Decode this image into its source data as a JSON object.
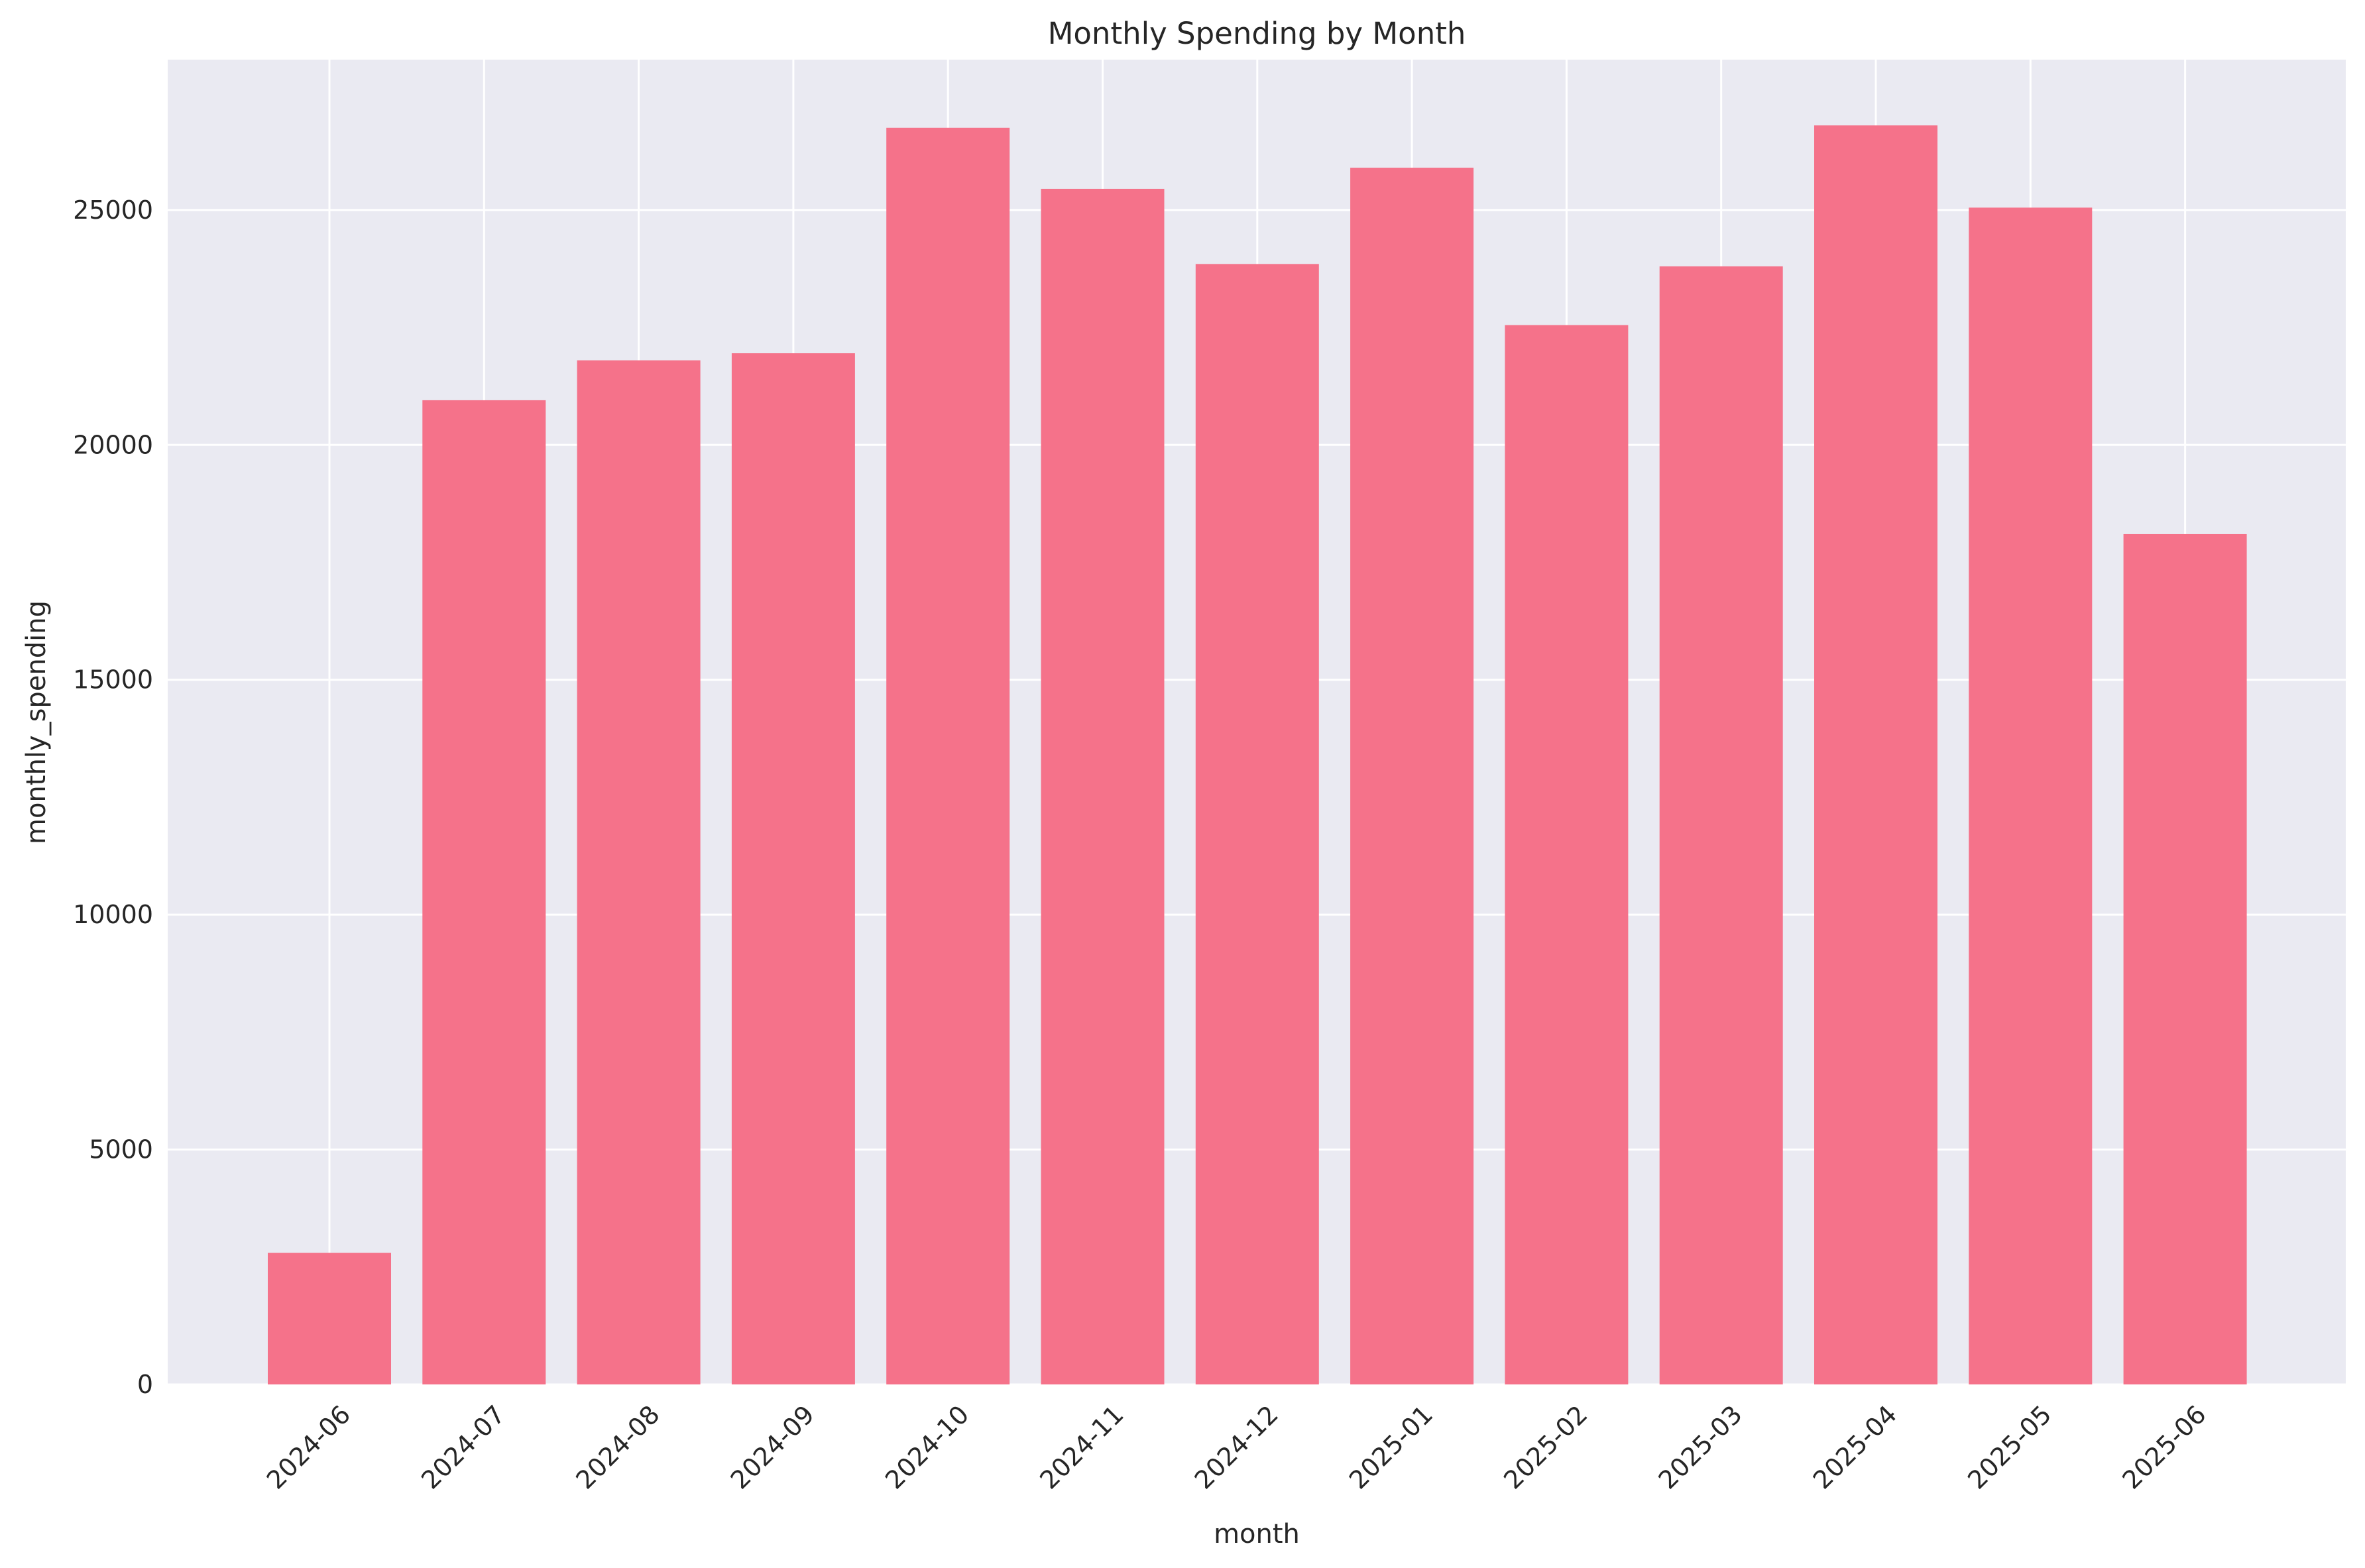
{
  "chart_data": {
    "type": "bar",
    "title": "Monthly Spending by Month",
    "xlabel": "month",
    "ylabel": "monthly_spending",
    "categories": [
      "2024-06",
      "2024-07",
      "2024-08",
      "2024-09",
      "2024-10",
      "2024-11",
      "2024-12",
      "2025-01",
      "2025-02",
      "2025-03",
      "2025-04",
      "2025-05",
      "2025-06"
    ],
    "values": [
      2800,
      20950,
      21800,
      21950,
      26750,
      25450,
      23850,
      25900,
      22550,
      23800,
      26800,
      25050,
      18100
    ],
    "ylim": [
      0,
      28200
    ],
    "yticks": [
      0,
      5000,
      10000,
      15000,
      20000,
      25000
    ],
    "grid": true,
    "bar_color": "#f5728a",
    "background_color": "#eaeaf2",
    "grid_color": "#ffffff"
  }
}
